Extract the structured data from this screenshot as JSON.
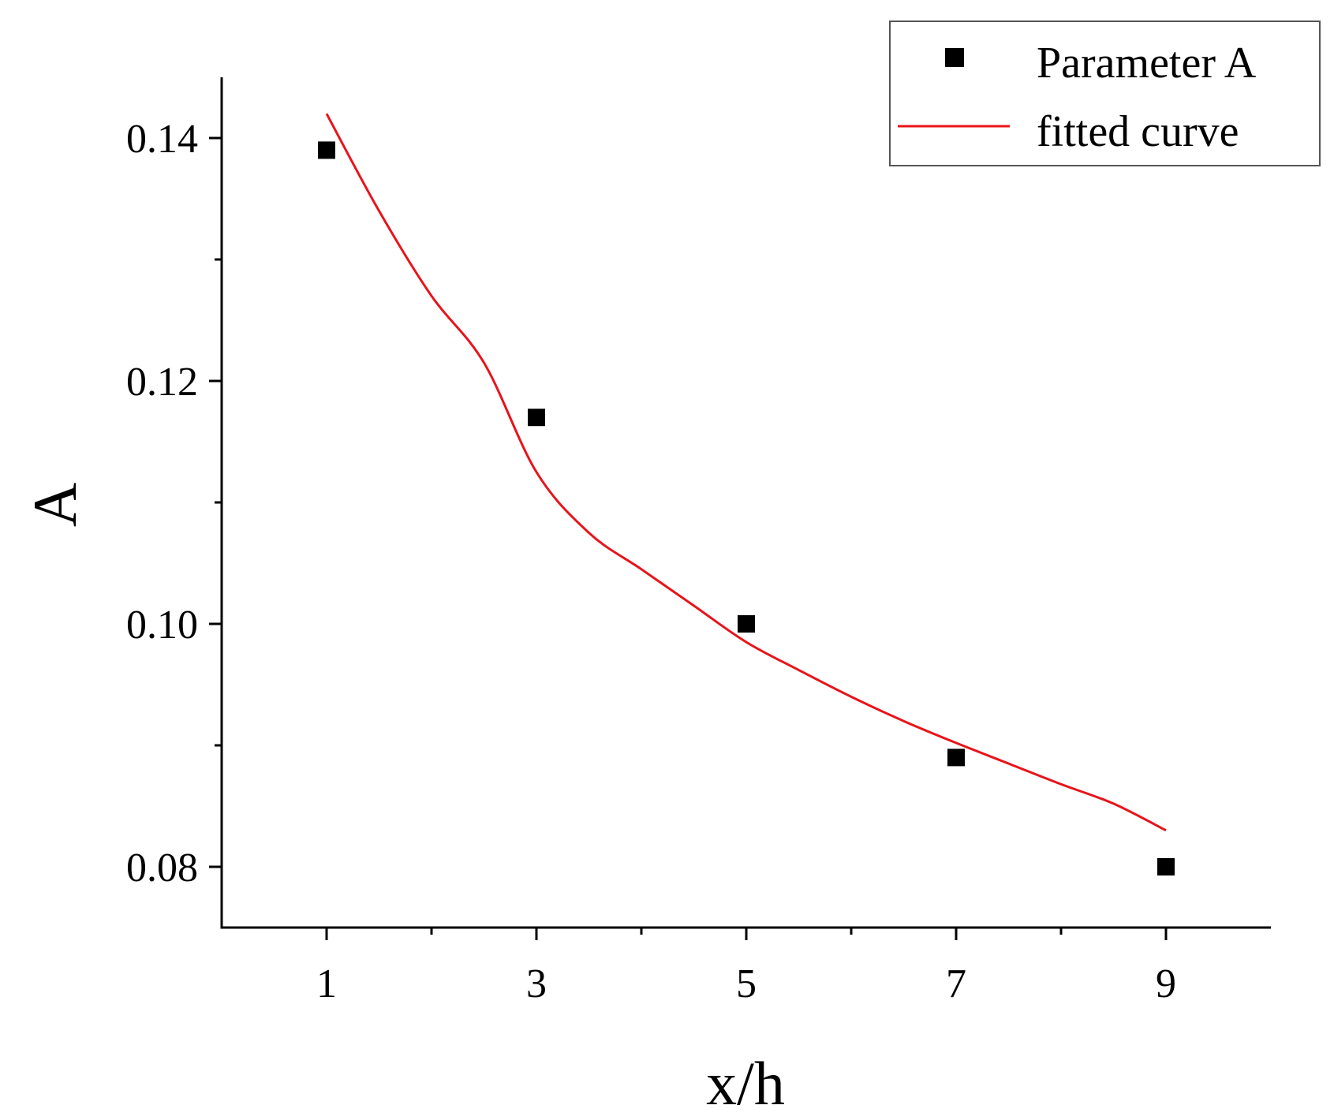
{
  "chart_data": {
    "type": "scatter",
    "xlabel": "x/h",
    "ylabel": "A",
    "xlim": [
      0,
      10
    ],
    "ylim": [
      0.075,
      0.145
    ],
    "x_ticks_major": [
      1,
      3,
      5,
      7,
      9
    ],
    "x_ticks_minor": [
      2,
      4,
      6,
      8
    ],
    "y_ticks_major": [
      0.08,
      0.1,
      0.12,
      0.14
    ],
    "y_ticks_minor": [
      0.09,
      0.11,
      0.13
    ],
    "y_tick_labels": [
      "0.08",
      "0.10",
      "0.12",
      "0.14"
    ],
    "x_tick_labels": [
      "1",
      "3",
      "5",
      "7",
      "9"
    ],
    "legend_position": "top-right",
    "series": [
      {
        "name": "Parameter A",
        "kind": "scatter",
        "marker": "square",
        "color": "#000000",
        "x": [
          1,
          3,
          5,
          7,
          9
        ],
        "y": [
          0.139,
          0.117,
          0.1,
          0.089,
          0.08
        ]
      },
      {
        "name": "fitted curve",
        "kind": "line",
        "color": "#e8141a",
        "x": [
          1,
          1.5,
          2,
          2.5,
          3,
          3.5,
          4,
          4.5,
          5,
          5.5,
          6,
          6.5,
          7,
          7.5,
          8,
          8.5,
          9
        ],
        "y": [
          0.142,
          0.134,
          0.127,
          0.1215,
          0.1125,
          0.1075,
          0.1045,
          0.1015,
          0.0985,
          0.0962,
          0.094,
          0.092,
          0.0902,
          0.0885,
          0.0868,
          0.0852,
          0.083
        ]
      }
    ]
  }
}
